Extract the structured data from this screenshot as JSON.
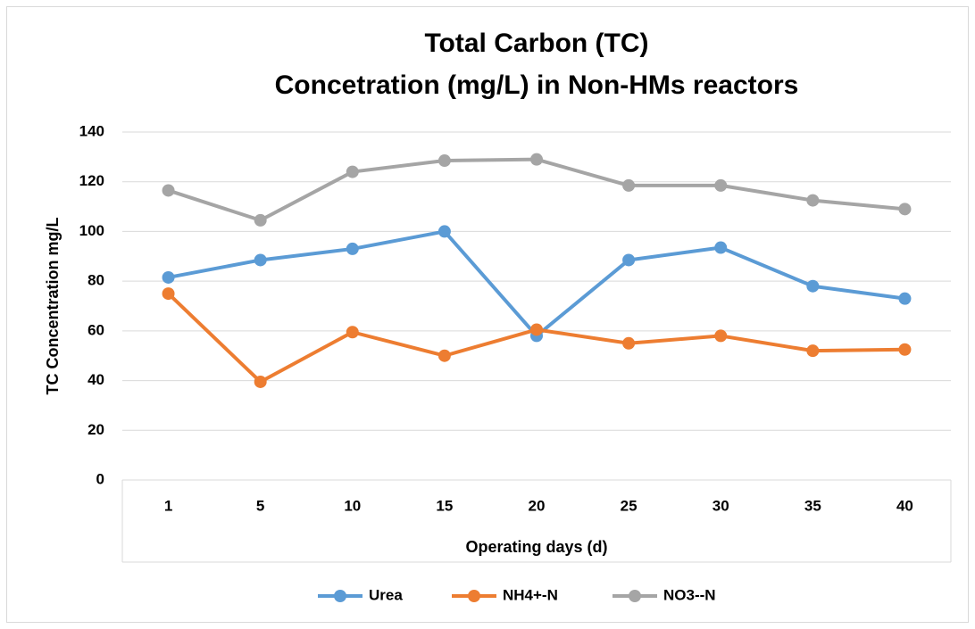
{
  "chart_data": {
    "type": "line",
    "title": [
      "Total Carbon (TC)",
      "Concetration (mg/L) in Non-HMs reactors"
    ],
    "x_label": "Operating days (d)",
    "y_label": "TC Concentration mg/L",
    "categories": [
      1,
      5,
      10,
      15,
      20,
      25,
      30,
      35,
      40
    ],
    "series": [
      {
        "name": "Urea",
        "color": "#5b9bd5",
        "values": [
          81.5,
          88.5,
          93,
          100,
          58,
          88.5,
          93.5,
          78,
          73
        ]
      },
      {
        "name": "NH4+-N",
        "color": "#ed7d31",
        "values": [
          75,
          39.5,
          59.5,
          50,
          60.5,
          55,
          58,
          52,
          52.5
        ]
      },
      {
        "name": "NO3--N",
        "color": "#a5a5a5",
        "values": [
          116.5,
          104.5,
          124,
          128.5,
          129,
          118.5,
          118.5,
          112.5,
          109
        ]
      }
    ],
    "ylim": [
      0,
      140
    ],
    "yticks": [
      0,
      20,
      40,
      60,
      80,
      100,
      120,
      140
    ],
    "grid": true,
    "legend": "bottom"
  }
}
